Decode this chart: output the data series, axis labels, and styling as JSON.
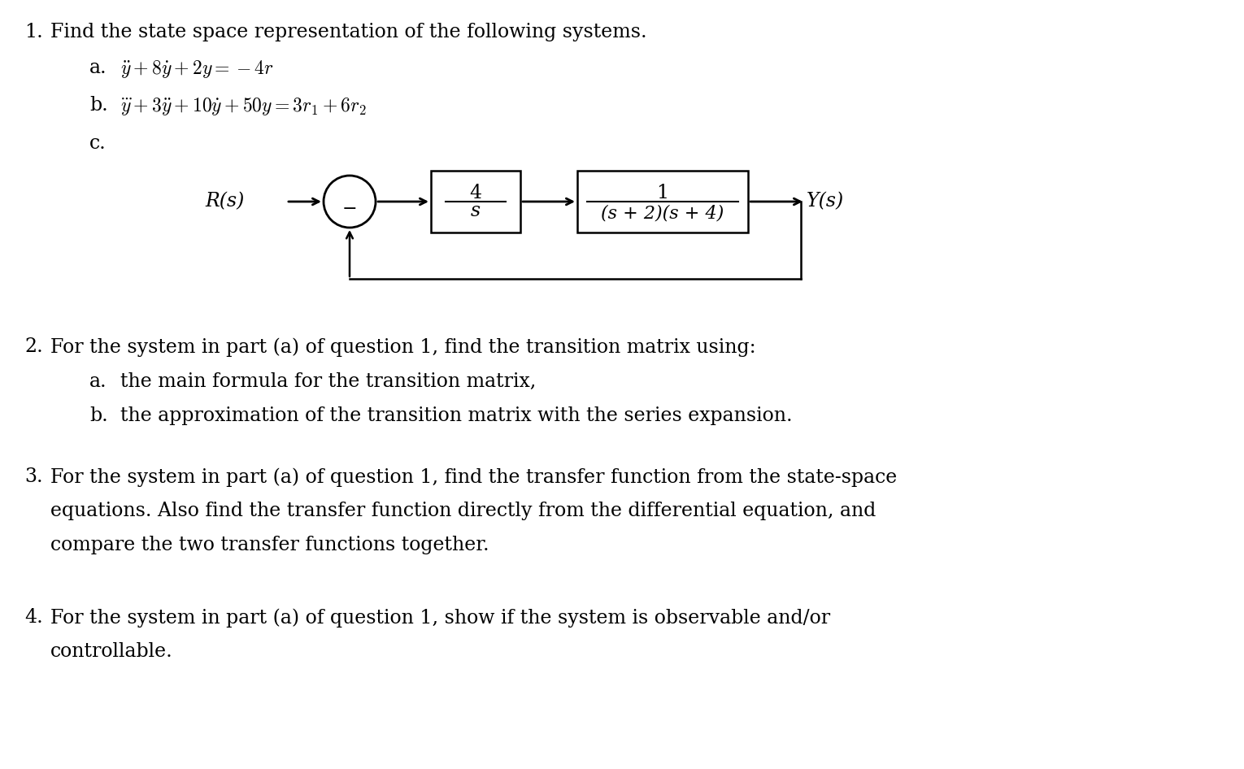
{
  "bg_color": "#ffffff",
  "text_color": "#000000",
  "body_fontsize": 17,
  "math_fontsize": 17,
  "fig_width": 15.3,
  "fig_height": 9.46,
  "dpi": 100,
  "q1_num": "1.",
  "q1_text": "Find the state space representation of the following systems.",
  "q1a_label": "a.",
  "q1a_math": "$\\ddot{y} + 8\\dot{y} + 2y = -4r$",
  "q1b_label": "b.",
  "q1b_math": "$\\dddot{y} + 3\\ddot{y} + 10\\dot{y} + 50y = 3r_1 + 6r_2$",
  "q1c_label": "c.",
  "q2_num": "2.",
  "q2_text": "For the system in part (a) of question 1, find the transition matrix using:",
  "q2a_label": "a.",
  "q2a_text": "the main formula for the transition matrix,",
  "q2b_label": "b.",
  "q2b_text": "the approximation of the transition matrix with the series expansion.",
  "q3_num": "3.",
  "q3_line1": "For the system in part (a) of question 1, find the transfer function from the state-space",
  "q3_line2": "equations. Also find the transfer function directly from the differential equation, and",
  "q3_line3": "compare the two transfer functions together.",
  "q4_num": "4.",
  "q4_line1": "For the system in part (a) of question 1, show if the system is observable and/or",
  "q4_line2": "controllable.",
  "block1_num": "4",
  "block1_den": "s",
  "block2_num": "1",
  "block2_den": "(s + 2)(s + 4)",
  "Rs_label": "R(s)",
  "Ys_label": "Y(s)",
  "minus_label": "−"
}
